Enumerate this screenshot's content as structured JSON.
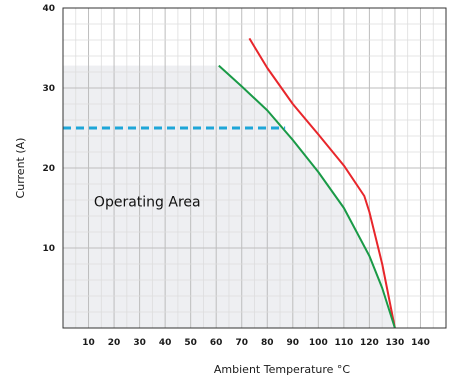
{
  "chart_data": {
    "type": "line",
    "xlabel": "Ambient Temperature °C",
    "ylabel": "Current (A)",
    "xlim": [
      0,
      150
    ],
    "ylim": [
      0,
      40
    ],
    "x_ticks": [
      10,
      20,
      30,
      40,
      50,
      60,
      70,
      80,
      90,
      100,
      110,
      120,
      130,
      140
    ],
    "y_ticks": [
      0,
      10,
      20,
      30,
      40
    ],
    "y_tick_labels": [
      "",
      "10",
      "20",
      "30",
      "40"
    ],
    "minor_grid_step_x": 5,
    "minor_grid_step_y": 2,
    "grid": true,
    "series": [
      {
        "color": "#e8262b",
        "points": [
          [
            73,
            36.2
          ],
          [
            80,
            32.5
          ],
          [
            90,
            28
          ],
          [
            100,
            24.2
          ],
          [
            110,
            20.3
          ],
          [
            118,
            16.5
          ],
          [
            120,
            14.5
          ],
          [
            125,
            8
          ],
          [
            130,
            0
          ]
        ]
      },
      {
        "color": "#1a9a47",
        "points": [
          [
            61,
            32.8
          ],
          [
            70,
            30.2
          ],
          [
            80,
            27.2
          ],
          [
            90,
            23.5
          ],
          [
            100,
            19.5
          ],
          [
            110,
            15
          ],
          [
            120,
            9
          ],
          [
            125,
            5
          ],
          [
            130,
            0
          ]
        ]
      }
    ],
    "operating_area": {
      "label": "Operating Area",
      "x_range": [
        0,
        60
      ],
      "y_max": 32.8,
      "fill_color": "#eeeff2"
    },
    "reference_line": {
      "y": 25,
      "x_range": [
        0,
        87
      ],
      "color": "#1ea6d8",
      "style": "dashed"
    }
  }
}
